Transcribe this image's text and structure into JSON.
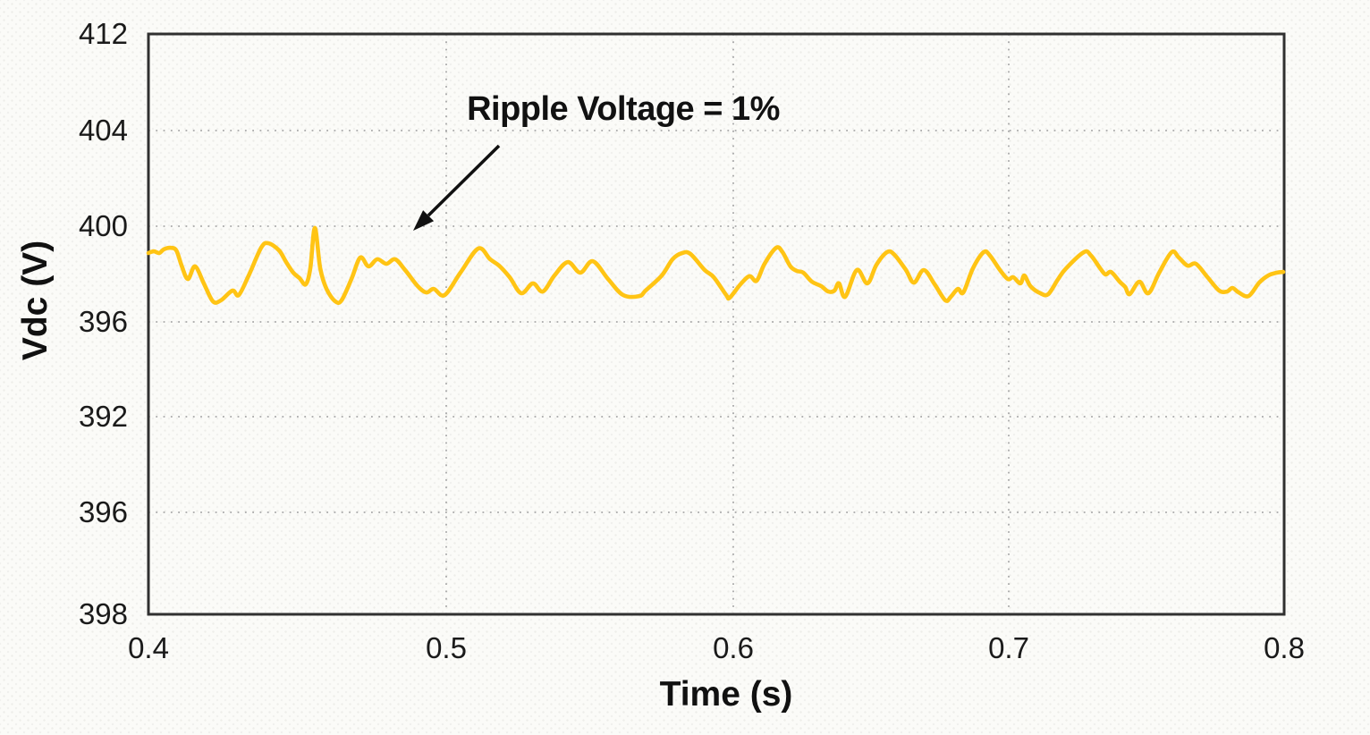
{
  "chart_data": {
    "type": "line",
    "title": "",
    "xlabel": "Time (s)",
    "ylabel": "Vdc (V)",
    "x_axis": {
      "tick_labels": [
        "0.4",
        "0.5",
        "0.6",
        "0.7",
        "0.8"
      ],
      "range": [
        0.4,
        0.8
      ]
    },
    "y_axis": {
      "tick_labels": [
        "412",
        "404",
        "400",
        "396",
        "392",
        "396",
        "398"
      ]
    },
    "grid": "dotted",
    "legend_position": "none",
    "annotation": {
      "text": "Ripple Voltage = 1%"
    },
    "colors": {
      "line": "#FFC414",
      "axis": "#303030",
      "grid": "#A8A8A8",
      "text": "#111111",
      "background": "#FBFBF8"
    },
    "series": [
      {
        "name": "Vdc",
        "x": [
          0.4,
          0.4019,
          0.4038,
          0.4054,
          0.4076,
          0.4098,
          0.4117,
          0.4139,
          0.4164,
          0.4195,
          0.4227,
          0.4255,
          0.4296,
          0.4318,
          0.4353,
          0.4397,
          0.4422,
          0.446,
          0.4485,
          0.451,
          0.4532,
          0.4554,
          0.457,
          0.4586,
          0.4605,
          0.4627,
          0.4658,
          0.468,
          0.4715,
          0.4746,
          0.4775,
          0.4806,
          0.4838,
          0.4869,
          0.4904,
          0.4948,
          0.4979,
          0.5005,
          0.5043,
          0.5099,
          0.5162,
          0.5203,
          0.5235,
          0.5272,
          0.5313,
          0.5354,
          0.5389,
          0.543,
          0.5477,
          0.5521,
          0.5565,
          0.5619,
          0.5672,
          0.5729,
          0.5751,
          0.5808,
          0.5846,
          0.588,
          0.5909,
          0.5959,
          0.5991,
          0.6035,
          0.6047,
          0.6085,
          0.6117,
          0.6142,
          0.617,
          0.6211,
          0.6233,
          0.6261,
          0.6284,
          0.6306,
          0.6337,
          0.6369,
          0.6394,
          0.6416,
          0.6432,
          0.6454,
          0.6495,
          0.6532,
          0.6564,
          0.6602,
          0.6627,
          0.6668,
          0.6696,
          0.6731,
          0.6769,
          0.6807,
          0.6826,
          0.6851,
          0.687,
          0.6904,
          0.6942,
          0.6964,
          0.6999,
          0.7027,
          0.7046,
          0.7071,
          0.7085,
          0.7106,
          0.7141,
          0.7169,
          0.7204,
          0.7232,
          0.7295,
          0.732,
          0.7352,
          0.7371,
          0.739,
          0.7421,
          0.744,
          0.7456,
          0.749,
          0.7522,
          0.756,
          0.7604,
          0.7629,
          0.766,
          0.7689,
          0.773,
          0.7771,
          0.7799,
          0.7818,
          0.784,
          0.7875,
          0.7912,
          0.7944,
          0.7975,
          0.7997
        ],
        "y": [
          398.88,
          398.95,
          398.88,
          399.03,
          399.1,
          398.99,
          398.35,
          397.79,
          398.32,
          397.61,
          396.86,
          396.9,
          397.31,
          397.12,
          397.94,
          399.1,
          399.29,
          398.99,
          398.5,
          398.06,
          397.83,
          397.57,
          398.24,
          399.93,
          398.24,
          397.38,
          396.86,
          396.9,
          397.79,
          398.69,
          398.32,
          398.62,
          398.43,
          398.62,
          398.17,
          397.5,
          397.23,
          397.38,
          397.12,
          398.06,
          399.07,
          398.62,
          398.35,
          397.87,
          397.2,
          397.61,
          397.27,
          397.94,
          398.5,
          398.06,
          398.54,
          397.79,
          397.12,
          397.08,
          397.31,
          397.94,
          398.62,
          398.88,
          398.84,
          398.17,
          397.87,
          397.12,
          397.01,
          397.57,
          397.91,
          397.72,
          398.43,
          399.1,
          398.92,
          398.32,
          398.13,
          398.06,
          397.68,
          397.5,
          397.27,
          397.31,
          397.61,
          397.05,
          398.17,
          397.61,
          398.39,
          398.92,
          398.81,
          398.17,
          397.64,
          398.17,
          397.57,
          396.9,
          397.05,
          397.38,
          397.23,
          398.24,
          398.92,
          398.77,
          398.17,
          397.79,
          397.87,
          397.61,
          397.94,
          397.5,
          397.2,
          397.16,
          397.79,
          398.24,
          398.92,
          398.77,
          398.24,
          397.98,
          398.09,
          397.68,
          397.46,
          397.16,
          397.68,
          397.2,
          398.06,
          398.92,
          398.69,
          398.35,
          398.43,
          397.87,
          397.31,
          397.27,
          397.42,
          397.23,
          397.08,
          397.64,
          397.94,
          398.06,
          398.09
        ]
      }
    ]
  }
}
